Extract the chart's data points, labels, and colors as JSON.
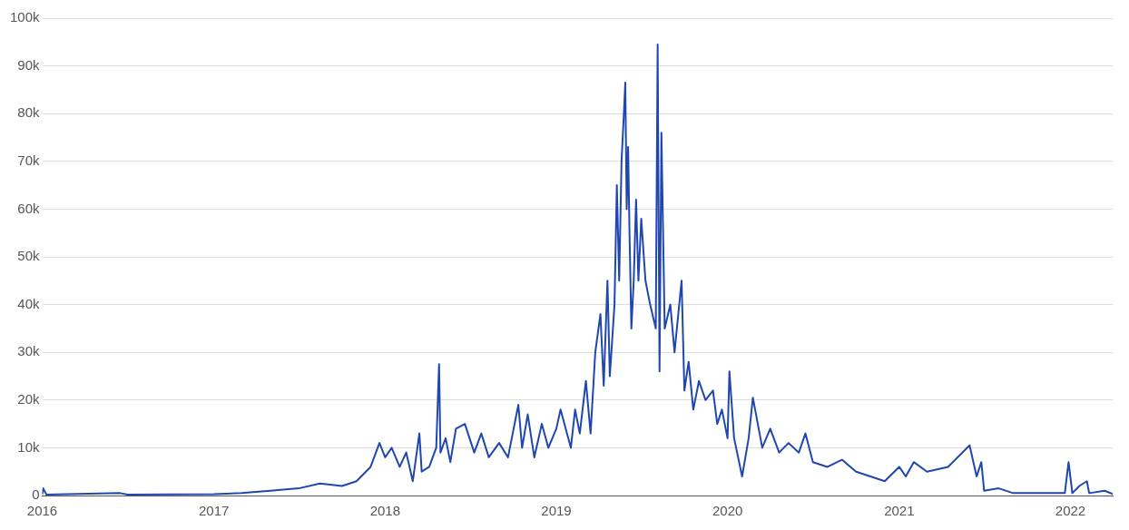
{
  "chart_data": {
    "type": "line",
    "x": [
      "2016-01-01",
      "2016-01-03",
      "2016-01-10",
      "2016-06-15",
      "2016-07-01",
      "2017-01-01",
      "2017-03-01",
      "2017-05-01",
      "2017-07-01",
      "2017-08-15",
      "2017-10-01",
      "2017-11-01",
      "2017-12-01",
      "2017-12-20",
      "2018-01-01",
      "2018-01-15",
      "2018-02-01",
      "2018-02-15",
      "2018-03-01",
      "2018-03-15",
      "2018-03-20",
      "2018-04-05",
      "2018-04-20",
      "2018-04-26",
      "2018-04-29",
      "2018-05-10",
      "2018-05-20",
      "2018-06-01",
      "2018-06-20",
      "2018-07-10",
      "2018-07-25",
      "2018-08-10",
      "2018-09-01",
      "2018-09-20",
      "2018-10-12",
      "2018-10-20",
      "2018-11-01",
      "2018-11-15",
      "2018-12-01",
      "2018-12-15",
      "2019-01-01",
      "2019-01-10",
      "2019-02-01",
      "2019-02-10",
      "2019-02-20",
      "2019-03-05",
      "2019-03-15",
      "2019-03-25",
      "2019-04-05",
      "2019-04-12",
      "2019-04-20",
      "2019-04-25",
      "2019-05-05",
      "2019-05-10",
      "2019-05-15",
      "2019-05-20",
      "2019-05-25",
      "2019-05-28",
      "2019-05-31",
      "2019-06-03",
      "2019-06-06",
      "2019-06-10",
      "2019-06-15",
      "2019-06-20",
      "2019-06-25",
      "2019-07-01",
      "2019-07-10",
      "2019-07-20",
      "2019-08-01",
      "2019-08-05",
      "2019-08-09",
      "2019-08-13",
      "2019-08-20",
      "2019-09-01",
      "2019-09-10",
      "2019-09-25",
      "2019-10-01",
      "2019-10-10",
      "2019-10-20",
      "2019-11-01",
      "2019-11-15",
      "2019-12-01",
      "2019-12-10",
      "2019-12-20",
      "2020-01-01",
      "2020-01-05",
      "2020-01-15",
      "2020-02-01",
      "2020-02-15",
      "2020-02-24",
      "2020-03-15",
      "2020-04-01",
      "2020-04-20",
      "2020-05-10",
      "2020-06-01",
      "2020-06-15",
      "2020-07-01",
      "2020-08-01",
      "2020-09-01",
      "2020-10-01",
      "2020-11-01",
      "2020-12-01",
      "2021-01-01",
      "2021-01-15",
      "2021-02-01",
      "2021-03-01",
      "2021-04-15",
      "2021-05-31",
      "2021-06-15",
      "2021-06-25",
      "2021-07-01",
      "2021-08-01",
      "2021-09-01",
      "2021-12-01",
      "2021-12-20",
      "2021-12-28",
      "2022-01-05",
      "2022-01-20",
      "2022-02-05",
      "2022-02-10",
      "2022-03-15",
      "2022-04-01"
    ],
    "series": [
      {
        "color": "#2047b0",
        "values": [
          200,
          1500,
          200,
          500,
          200,
          300,
          500,
          1000,
          1500,
          2500,
          2000,
          3000,
          6000,
          11000,
          8000,
          10000,
          6000,
          9000,
          3000,
          13000,
          5000,
          6000,
          10000,
          27500,
          9000,
          12000,
          7000,
          14000,
          15000,
          9000,
          13000,
          8000,
          11000,
          8000,
          19000,
          10000,
          17000,
          8000,
          15000,
          10000,
          14000,
          18000,
          10000,
          18000,
          13000,
          24000,
          13000,
          30000,
          38000,
          23000,
          45000,
          25000,
          40000,
          65000,
          45000,
          70000,
          80000,
          86500,
          60000,
          73000,
          55000,
          35000,
          45000,
          62000,
          45000,
          58000,
          45000,
          40000,
          35000,
          94500,
          26000,
          76000,
          35000,
          40000,
          30000,
          45000,
          22000,
          28000,
          18000,
          24000,
          20000,
          22000,
          15000,
          18000,
          12000,
          26000,
          12000,
          4000,
          12000,
          20500,
          10000,
          14000,
          9000,
          11000,
          9000,
          13000,
          7000,
          6000,
          7500,
          5000,
          4000,
          3000,
          6000,
          4000,
          7000,
          5000,
          6000,
          10500,
          4000,
          7000,
          1000,
          1500,
          500,
          500,
          500,
          7000,
          500,
          2000,
          3000,
          500,
          1000,
          300
        ]
      }
    ],
    "xlim": [
      "2016-01-01",
      "2022-04-01"
    ],
    "xticks": [
      "2016",
      "2017",
      "2018",
      "2019",
      "2020",
      "2021",
      "2022"
    ],
    "ylim": [
      0,
      100000
    ],
    "yticks": [
      {
        "value": 0,
        "label": "0"
      },
      {
        "value": 10000,
        "label": "10k"
      },
      {
        "value": 20000,
        "label": "20k"
      },
      {
        "value": 30000,
        "label": "30k"
      },
      {
        "value": 40000,
        "label": "40k"
      },
      {
        "value": 50000,
        "label": "50k"
      },
      {
        "value": 60000,
        "label": "60k"
      },
      {
        "value": 70000,
        "label": "70k"
      },
      {
        "value": 80000,
        "label": "80k"
      },
      {
        "value": 90000,
        "label": "90k"
      },
      {
        "value": 100000,
        "label": "100k"
      }
    ],
    "grid": "y",
    "legend": false,
    "marker": "none",
    "line_style": "solid"
  }
}
